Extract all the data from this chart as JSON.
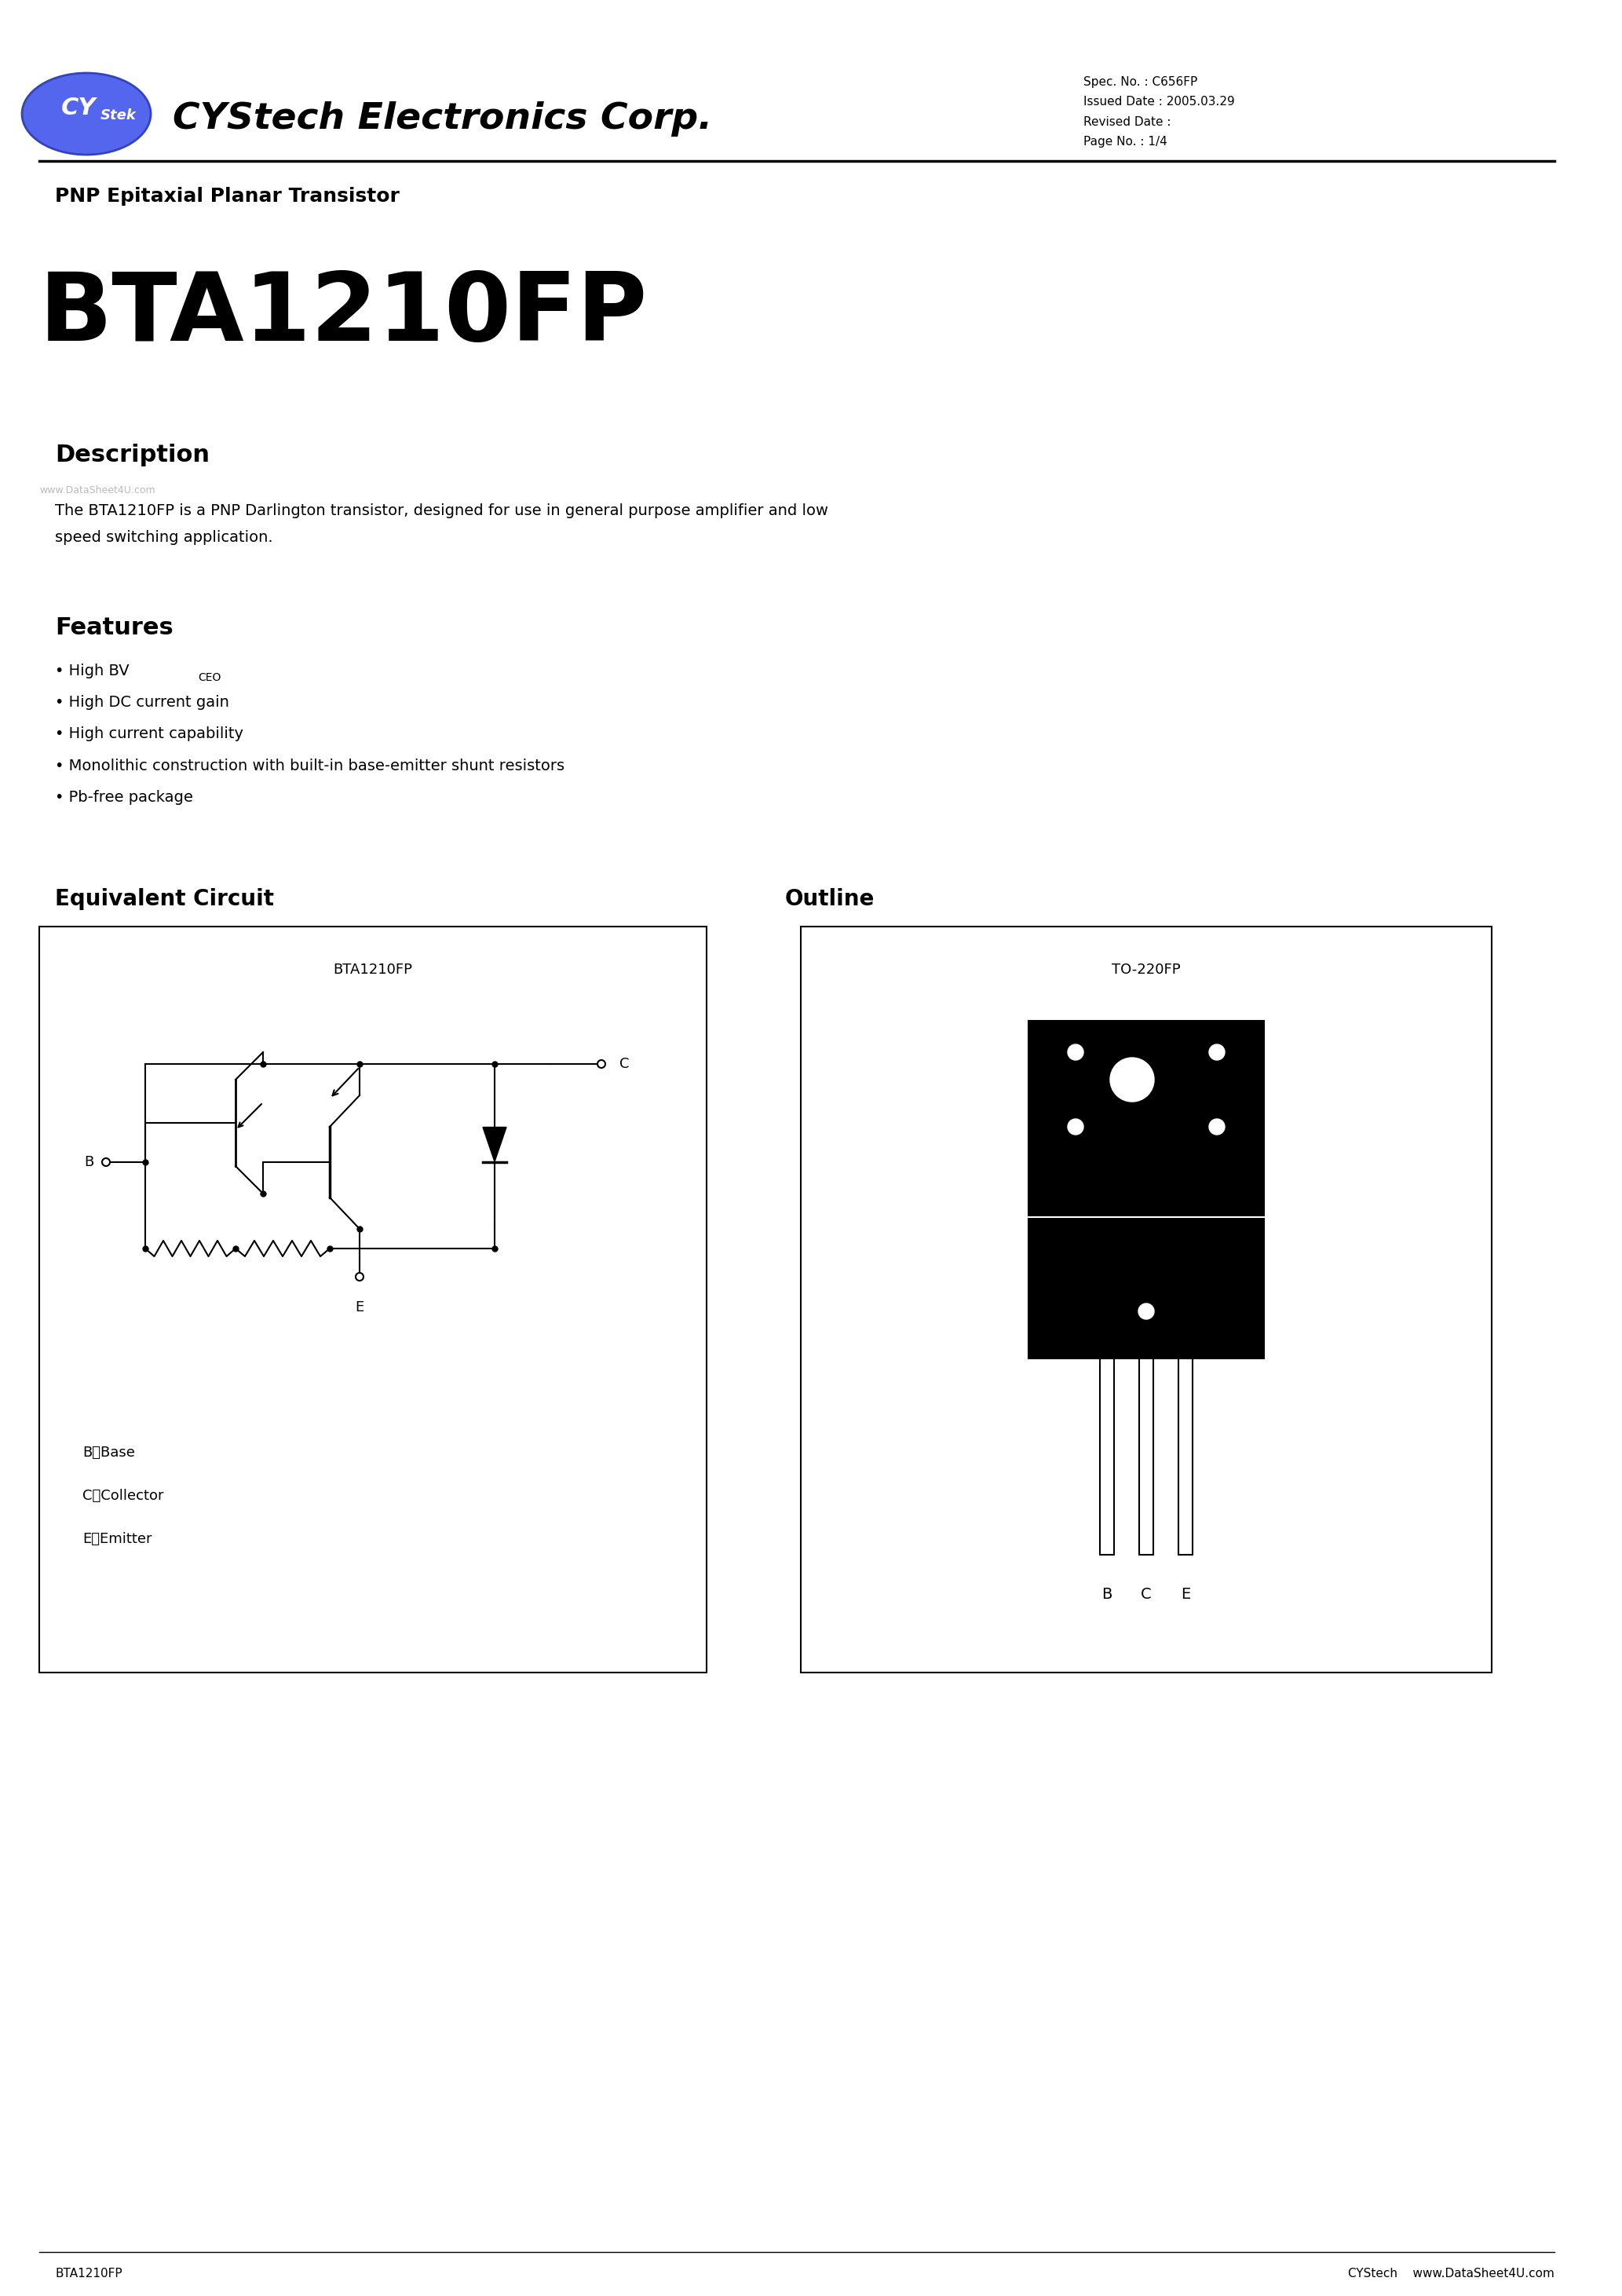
{
  "company_name": "CYStech Electronics Corp.",
  "spec_no": "Spec. No. : C656FP",
  "issued_date": "Issued Date : 2005.03.29",
  "revised_date": "Revised Date :",
  "page_no": "Page No. : 1/4",
  "subtitle": "PNP Epitaxial Planar Transistor",
  "part_number": "BTA1210FP",
  "description_title": "Description",
  "description_line1": "The BTA1210FP is a PNP Darlington transistor, designed for use in general purpose amplifier and low",
  "description_line2": "speed switching application.",
  "watermark": "www.DataSheet4U.com",
  "features_title": "Features",
  "feature1_main": "High BV",
  "feature1_sub": "CEO",
  "feature2": "High DC current gain",
  "feature3": "High current capability",
  "feature4": "Monolithic construction with built-in base-emitter shunt resistors",
  "feature5": "Pb-free package",
  "equiv_title": "Equivalent Circuit",
  "equiv_label": "BTA1210FP",
  "outline_title": "Outline",
  "outline_label": "TO-220FP",
  "pin_b": "B：Base",
  "pin_c": "C：Collector",
  "pin_e": "E：Emitter",
  "footer_left": "BTA1210FP",
  "footer_right": "CYStech    www.DataSheet4U.com",
  "bg_color": "#ffffff",
  "text_color": "#000000",
  "logo_color": "#5566ee",
  "header_line_color": "#000000"
}
